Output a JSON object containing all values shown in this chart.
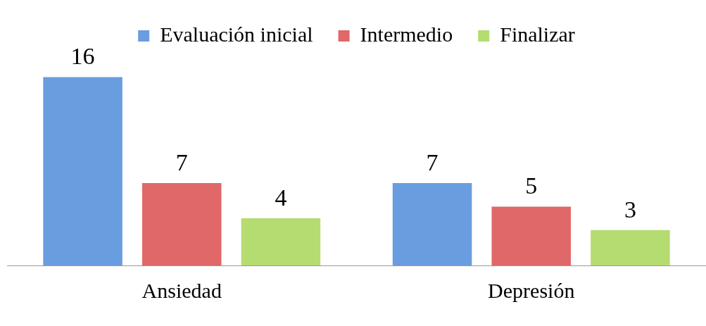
{
  "chart_data": {
    "type": "bar",
    "categories": [
      "Ansiedad",
      "Depresión"
    ],
    "series": [
      {
        "name": "Evaluación inicial",
        "color": "#6a9de0",
        "values": [
          16,
          7
        ]
      },
      {
        "name": "Intermedio",
        "color": "#e06868",
        "values": [
          7,
          5
        ]
      },
      {
        "name": "Finalizar",
        "color": "#b4dc70",
        "values": [
          4,
          3
        ]
      }
    ],
    "data_labels": true,
    "legend": "top",
    "grid": false
  }
}
